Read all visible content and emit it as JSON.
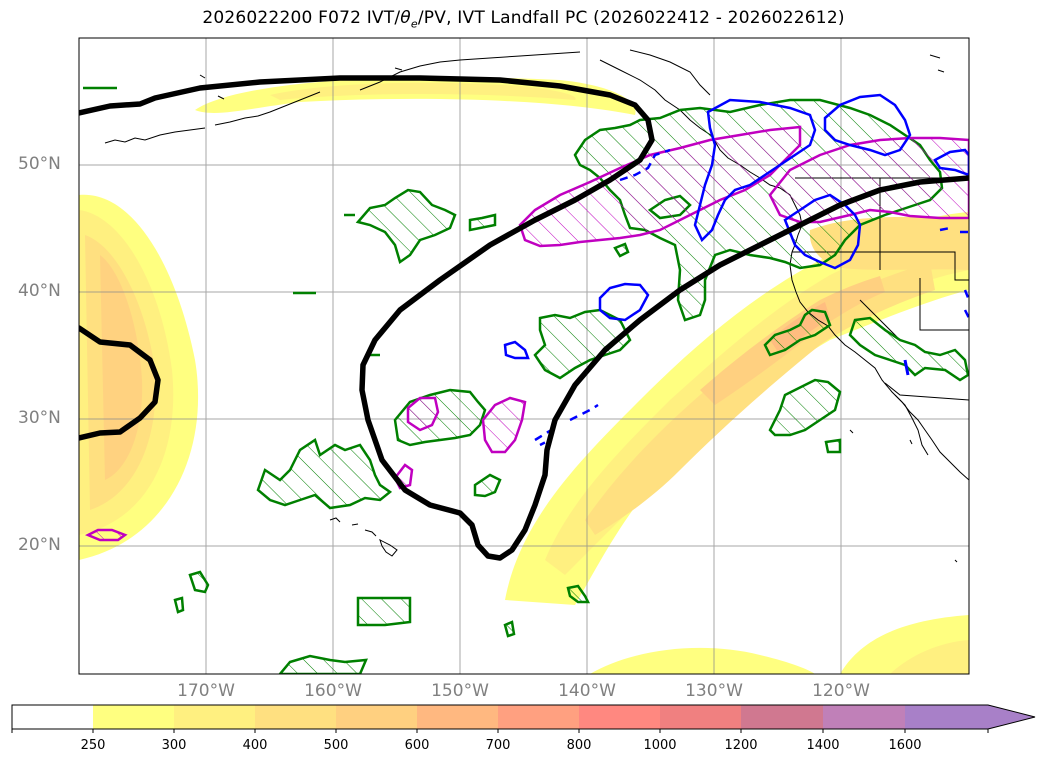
{
  "title": "2026022200 F072 IVT/",
  "title_theta": "θ",
  "title_sub": "e",
  "title_rest": "/PV, IVT Landfall PC (2026022412 - 2026022612)",
  "lat_labels": [
    "50°N",
    "40°N",
    "30°N",
    "20°N"
  ],
  "lon_labels": [
    "170°W",
    "160°W",
    "150°W",
    "140°W",
    "130°W",
    "120°W"
  ],
  "colorbar": {
    "ticks": [
      "250",
      "300",
      "400",
      "500",
      "600",
      "700",
      "800",
      "1000",
      "1200",
      "1400",
      "1600"
    ],
    "colors": [
      "#ffffff",
      "#ffff80",
      "#fff080",
      "#ffe080",
      "#ffd080",
      "#ffb880",
      "#ffa080",
      "#ff8880",
      "#f08080",
      "#d07890",
      "#c080b8",
      "#a880c8"
    ],
    "extend": "max"
  },
  "map": {
    "projection": "Mercator",
    "extent_lon": [
      -180,
      -110
    ],
    "extent_lat": [
      10,
      60
    ],
    "gridlines": true,
    "colors": {
      "theta_e_contour": "#000000",
      "pv_positive": "#008000",
      "pv_magenta": "#c000c0",
      "pv_blue": "#0000ff",
      "coast": "#000000"
    }
  }
}
